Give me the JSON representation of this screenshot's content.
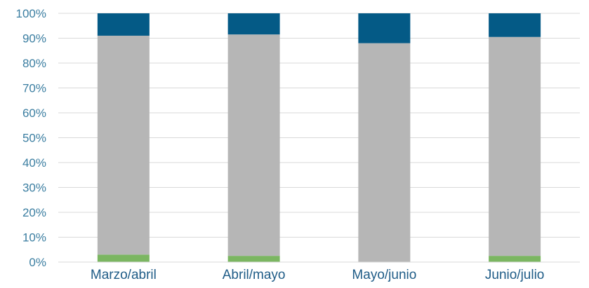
{
  "chart_data": {
    "type": "bar",
    "stacked": true,
    "title": "",
    "xlabel": "",
    "ylabel": "",
    "categories": [
      "Marzo/abril",
      "Abril/mayo",
      "Mayo/junio",
      "Junio/julio"
    ],
    "ylim": [
      0,
      100
    ],
    "y_ticks": [
      "0%",
      "10%",
      "20%",
      "30%",
      "40%",
      "50%",
      "60%",
      "70%",
      "80%",
      "90%",
      "100%"
    ],
    "grid": true,
    "legend": "none",
    "series": [
      {
        "color": "#7bb661",
        "values": [
          3,
          2.5,
          0,
          2.5
        ]
      },
      {
        "color": "#b6b6b6",
        "values": [
          88,
          89,
          88,
          88
        ]
      },
      {
        "color": "#045a86",
        "values": [
          9,
          8.5,
          12,
          9.5
        ]
      }
    ],
    "colors": {
      "tick_text": "#3b7ea1",
      "category_text": "#1f5c87",
      "grid": "#d9d9d9",
      "axis": "#d9d9d9"
    }
  }
}
